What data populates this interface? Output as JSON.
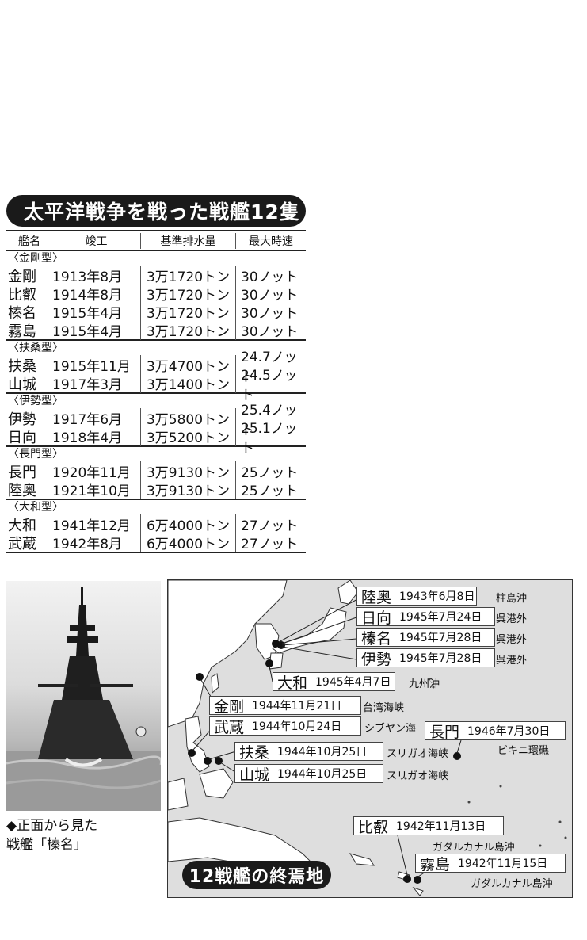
{
  "table_title": "太平洋戦争を戦った戦艦12隻",
  "headers": [
    "艦名",
    "竣工",
    "基準排水量",
    "最大時速"
  ],
  "groups": [
    {
      "label": "〈金剛型〉",
      "rows": [
        [
          "金剛",
          "1913年8月",
          "3万1720トン",
          "30ノット"
        ],
        [
          "比叡",
          "1914年8月",
          "3万1720トン",
          "30ノット"
        ],
        [
          "榛名",
          "1915年4月",
          "3万1720トン",
          "30ノット"
        ],
        [
          "霧島",
          "1915年4月",
          "3万1720トン",
          "30ノット"
        ]
      ]
    },
    {
      "label": "〈扶桑型〉",
      "rows": [
        [
          "扶桑",
          "1915年11月",
          "3万4700トン",
          "24.7ノット"
        ],
        [
          "山城",
          "1917年3月",
          "3万1400トン",
          "24.5ノット"
        ]
      ]
    },
    {
      "label": "〈伊勢型〉",
      "rows": [
        [
          "伊勢",
          "1917年6月",
          "3万5800トン",
          "25.4ノット"
        ],
        [
          "日向",
          "1918年4月",
          "3万5200トン",
          "25.1ノット"
        ]
      ]
    },
    {
      "label": "〈長門型〉",
      "rows": [
        [
          "長門",
          "1920年11月",
          "3万9130トン",
          "25ノット"
        ],
        [
          "陸奥",
          "1921年10月",
          "3万9130トン",
          "25ノット"
        ]
      ]
    },
    {
      "label": "〈大和型〉",
      "rows": [
        [
          "大和",
          "1941年12月",
          "6万4000トン",
          "27ノット"
        ],
        [
          "武蔵",
          "1942年8月",
          "6万4000トン",
          "27ノット"
        ]
      ]
    }
  ],
  "photo_caption": [
    "◆正面から見た",
    "戦艦「榛名」"
  ],
  "map_title": "12戦艦の終焉地",
  "map_labels": [
    {
      "name": "陸奥",
      "date": "1943年6月8日",
      "place": "柱島沖"
    },
    {
      "name": "日向",
      "date": "1945年7月24日",
      "place": "呉港外"
    },
    {
      "name": "榛名",
      "date": "1945年7月28日",
      "place": "呉港外"
    },
    {
      "name": "伊勢",
      "date": "1945年7月28日",
      "place": "呉港外"
    },
    {
      "name": "大和",
      "date": "1945年4月7日",
      "place": "九州沖"
    },
    {
      "name": "金剛",
      "date": "1944年11月21日",
      "place": "台湾海峡"
    },
    {
      "name": "武蔵",
      "date": "1944年10月24日",
      "place": "シブヤン海"
    },
    {
      "name": "扶桑",
      "date": "1944年10月25日",
      "place": "スリガオ海峡"
    },
    {
      "name": "山城",
      "date": "1944年10月25日",
      "place": "スリガオ海峡"
    },
    {
      "name": "長門",
      "date": "1946年7月30日",
      "place": "ビキニ環礁"
    },
    {
      "name": "比叡",
      "date": "1942年11月13日",
      "place": "ガダルカナル島沖"
    },
    {
      "name": "霧島",
      "date": "1942年11月15日",
      "place": "ガダルカナル島沖"
    }
  ]
}
